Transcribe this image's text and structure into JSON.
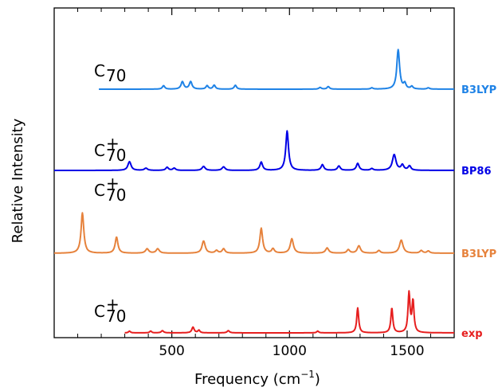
{
  "chart_data": {
    "type": "line",
    "title": "",
    "xlabel": "Frequency (cm",
    "xlabel_sup": "−1",
    "xlabel_close": ")",
    "ylabel": "Relative Intensity",
    "xlim": [
      0,
      1700
    ],
    "xticks": [
      500,
      1000,
      1500
    ],
    "xtick_labels": [
      "500",
      "1000",
      "1500"
    ],
    "yticks_shown": false,
    "grid": false,
    "series": [
      {
        "name": "B3LYP",
        "molecule": {
          "base": "C",
          "sub": "70",
          "sup": ""
        },
        "color": "#1e82e6",
        "offset": 3,
        "baseline_from": 190,
        "peaks": [
          [
            465,
            0.08,
            6
          ],
          [
            545,
            0.17,
            7
          ],
          [
            580,
            0.17,
            7
          ],
          [
            650,
            0.08,
            6
          ],
          [
            680,
            0.09,
            6
          ],
          [
            770,
            0.09,
            6
          ],
          [
            1130,
            0.04,
            6
          ],
          [
            1165,
            0.06,
            6
          ],
          [
            1350,
            0.03,
            6
          ],
          [
            1462,
            0.9,
            7
          ],
          [
            1490,
            0.12,
            6
          ],
          [
            1520,
            0.06,
            6
          ],
          [
            1590,
            0.03,
            6
          ]
        ]
      },
      {
        "name": "BP86",
        "molecule": {
          "base": "C",
          "sub": "70",
          "sup": "+"
        },
        "color": "#0000e6",
        "offset": 2,
        "baseline_from": 0,
        "peaks": [
          [
            320,
            0.2,
            8
          ],
          [
            390,
            0.05,
            8
          ],
          [
            480,
            0.07,
            7
          ],
          [
            510,
            0.05,
            7
          ],
          [
            635,
            0.09,
            8
          ],
          [
            720,
            0.08,
            8
          ],
          [
            880,
            0.19,
            7
          ],
          [
            990,
            0.9,
            7
          ],
          [
            1140,
            0.13,
            7
          ],
          [
            1210,
            0.1,
            7
          ],
          [
            1290,
            0.16,
            7
          ],
          [
            1350,
            0.04,
            7
          ],
          [
            1445,
            0.36,
            9
          ],
          [
            1480,
            0.12,
            7
          ],
          [
            1510,
            0.1,
            7
          ]
        ]
      },
      {
        "name": "B3LYP",
        "molecule": {
          "base": "C",
          "sub": "70",
          "sup": "+"
        },
        "color": "#e6823c",
        "offset": 1,
        "baseline_from": 0,
        "peaks": [
          [
            120,
            0.92,
            7
          ],
          [
            265,
            0.37,
            7
          ],
          [
            395,
            0.1,
            8
          ],
          [
            440,
            0.1,
            8
          ],
          [
            635,
            0.28,
            8
          ],
          [
            690,
            0.06,
            7
          ],
          [
            720,
            0.1,
            7
          ],
          [
            880,
            0.57,
            7
          ],
          [
            930,
            0.1,
            7
          ],
          [
            1010,
            0.33,
            8
          ],
          [
            1160,
            0.12,
            8
          ],
          [
            1250,
            0.08,
            7
          ],
          [
            1295,
            0.17,
            8
          ],
          [
            1380,
            0.06,
            7
          ],
          [
            1475,
            0.3,
            9
          ],
          [
            1560,
            0.06,
            7
          ],
          [
            1590,
            0.05,
            7
          ]
        ]
      },
      {
        "name": "exp",
        "molecule": {
          "base": "C",
          "sub": "70",
          "sup": "+"
        },
        "color": "#e61e1e",
        "offset": 0,
        "baseline_from": 300,
        "peaks": [
          [
            320,
            0.04,
            5
          ],
          [
            410,
            0.04,
            5
          ],
          [
            460,
            0.05,
            6
          ],
          [
            590,
            0.13,
            6
          ],
          [
            615,
            0.06,
            5
          ],
          [
            740,
            0.05,
            6
          ],
          [
            1120,
            0.04,
            5
          ],
          [
            1290,
            0.57,
            5
          ],
          [
            1435,
            0.57,
            5
          ],
          [
            1508,
            0.9,
            5
          ],
          [
            1525,
            0.72,
            5
          ]
        ]
      }
    ]
  }
}
